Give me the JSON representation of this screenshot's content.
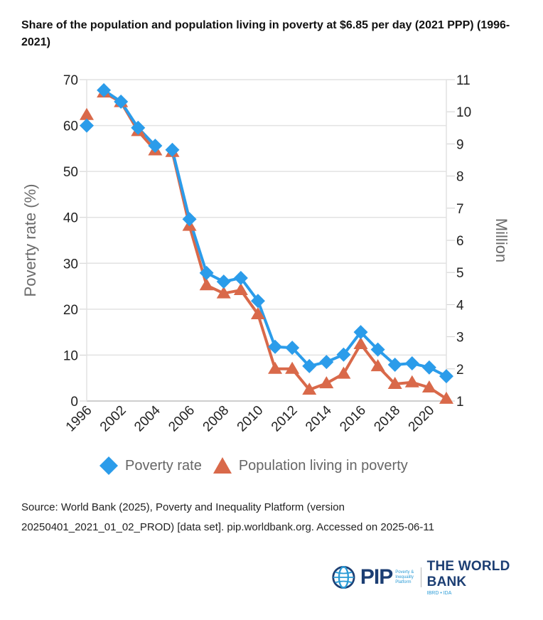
{
  "title": "Share of the population and population living in poverty at $6.85 per day (2021 PPP) (1996-2021)",
  "chart_data": {
    "type": "line",
    "title": "Share of the population and population living in poverty at $6.85 per day (2021 PPP) (1996-2021)",
    "categories": [
      "1996",
      "2001",
      "2002",
      "2003",
      "2004",
      "2005",
      "2006",
      "2007",
      "2008",
      "2009",
      "2010",
      "2011",
      "2012",
      "2013",
      "2014",
      "2015",
      "2016",
      "2017",
      "2018",
      "2019",
      "2020",
      "2021"
    ],
    "x_tick_labels": [
      "1996",
      "2002",
      "2004",
      "2006",
      "2008",
      "2010",
      "2012",
      "2014",
      "2016",
      "2018",
      "2020"
    ],
    "ylabel": "Poverty rate (%)",
    "ylim": [
      0,
      70
    ],
    "yticks": [
      0,
      10,
      20,
      30,
      40,
      50,
      60,
      70
    ],
    "y2label": "Million",
    "y2lim": [
      1,
      11
    ],
    "y2ticks": [
      1,
      2,
      3,
      4,
      5,
      6,
      7,
      8,
      9,
      10,
      11
    ],
    "grid": true,
    "legend_position": "bottom",
    "segments_note": "lines broken between 1996-2001 and 2004-2005",
    "segments": [
      [
        0,
        0
      ],
      [
        1,
        4
      ],
      [
        5,
        21
      ]
    ],
    "series": [
      {
        "name": "Poverty rate",
        "axis": "left",
        "marker": "diamond",
        "color": "#2b9cea",
        "values": [
          60.0,
          67.7,
          65.2,
          59.5,
          55.6,
          54.7,
          39.6,
          27.9,
          26.0,
          26.8,
          21.8,
          11.8,
          11.6,
          7.6,
          8.5,
          10.1,
          15.0,
          11.2,
          7.9,
          8.2,
          7.3,
          5.4
        ]
      },
      {
        "name": "Population living in poverty",
        "axis": "right",
        "marker": "triangle",
        "color": "#d9694a",
        "values": [
          9.9,
          10.6,
          10.3,
          9.4,
          8.8,
          8.75,
          6.45,
          4.6,
          4.35,
          4.45,
          3.7,
          2.0,
          2.0,
          1.35,
          1.55,
          1.85,
          2.77,
          2.08,
          1.53,
          1.58,
          1.42,
          1.07
        ]
      }
    ]
  },
  "legend": {
    "items": [
      {
        "label": "Poverty rate",
        "icon": "diamond-icon",
        "color": "#2b9cea"
      },
      {
        "label": "Population living in poverty",
        "icon": "triangle-icon",
        "color": "#d9694a"
      }
    ]
  },
  "source": {
    "line1": "Source: World Bank (2025), Poverty and Inequality Platform (version",
    "line2": "20250401_2021_01_02_PROD) [data set]. pip.worldbank.org. Accessed on 2025-06-11"
  },
  "logo": {
    "pip": "PIP",
    "pip_sub": "Poverty & Inequality Platform",
    "world_bank": "THE WORLD BANK",
    "world_bank_sub": "IBRD • IDA"
  }
}
